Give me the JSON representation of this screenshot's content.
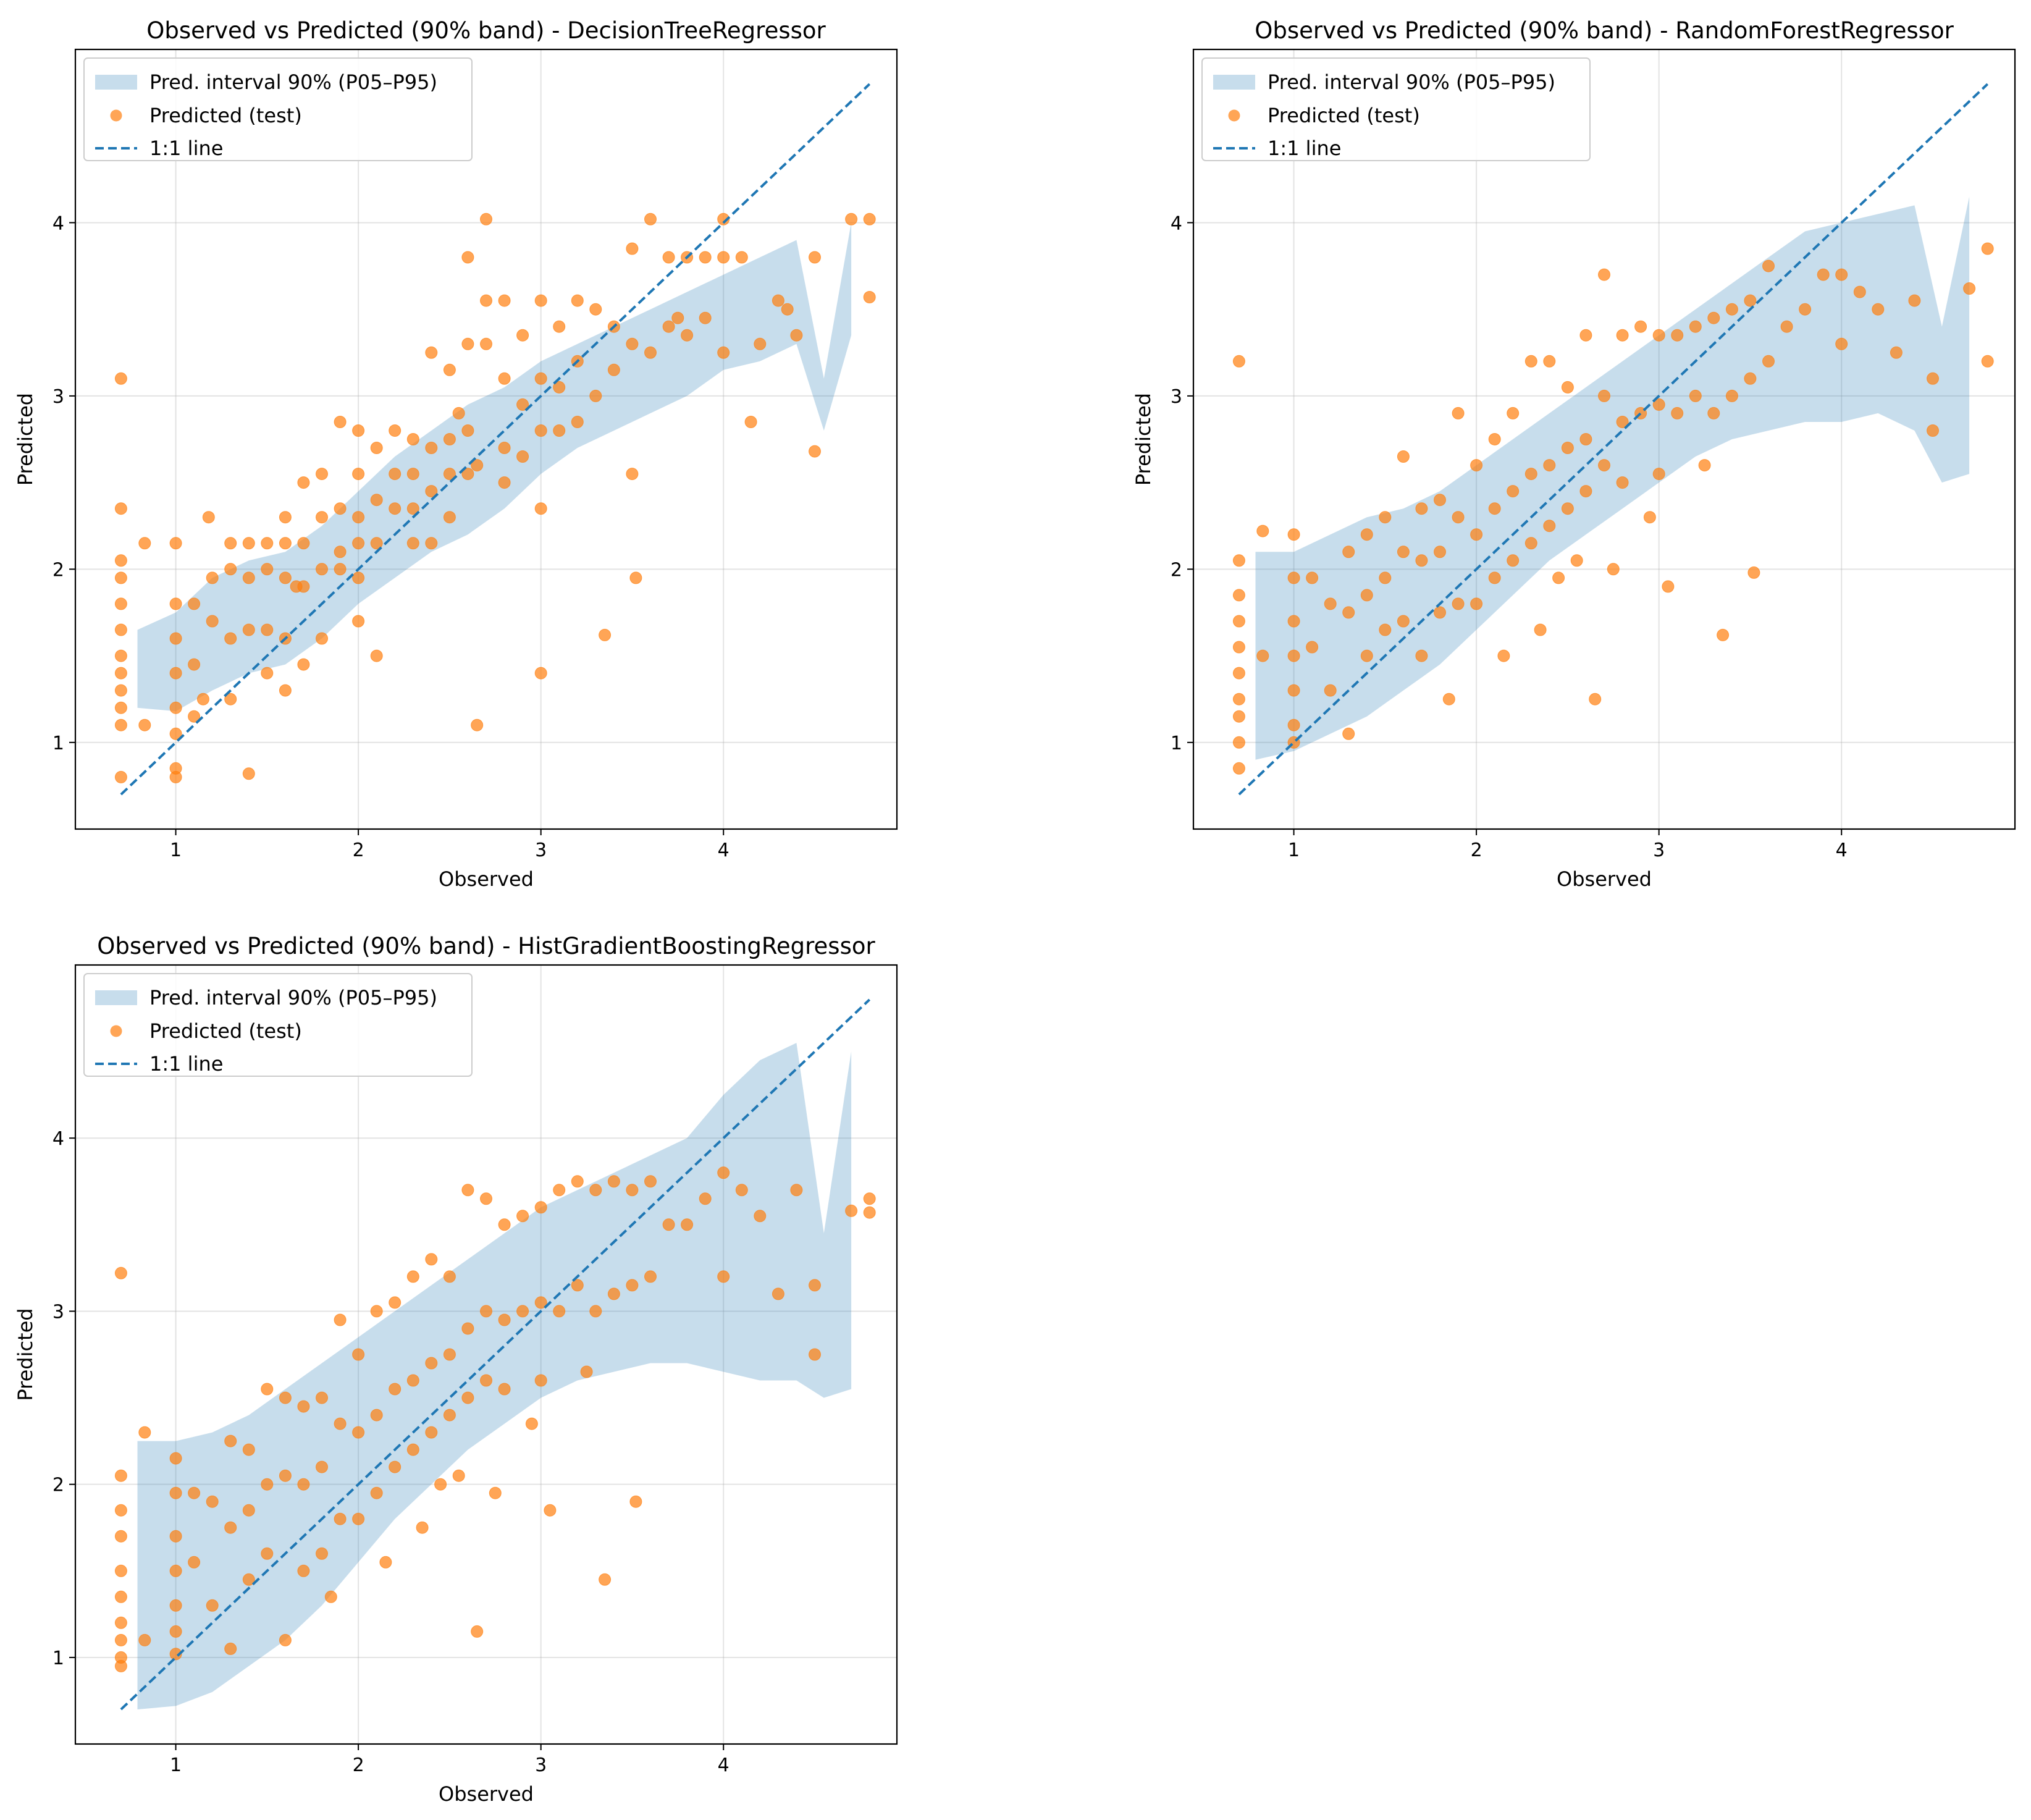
{
  "figure": {
    "background": "#ffffff"
  },
  "colors": {
    "band": "#1f77b4",
    "points": "#ff7f0e",
    "identity_line": "#1f77b4",
    "grid": "#b0b0b0"
  },
  "chart_data": [
    {
      "type": "scatter",
      "title": "Observed vs Predicted (90% band) - DecisionTreeRegressor",
      "xlabel": "Observed",
      "ylabel": "Predicted",
      "xlim": [
        0.45,
        4.95
      ],
      "ylim": [
        0.5,
        5.0
      ],
      "xticks": [
        1,
        2,
        3,
        4
      ],
      "yticks": [
        1,
        2,
        3,
        4
      ],
      "grid": true,
      "legend_position": "top-left",
      "legend": [
        "Pred. interval 90% (P05–P95)",
        "Predicted (test)",
        "1:1 line"
      ],
      "band": {
        "x": [
          0.79,
          1.0,
          1.2,
          1.4,
          1.6,
          1.8,
          2.0,
          2.2,
          2.4,
          2.6,
          2.8,
          3.0,
          3.2,
          3.4,
          3.6,
          3.8,
          4.0,
          4.2,
          4.4,
          4.55,
          4.7
        ],
        "p05": [
          1.2,
          1.18,
          1.3,
          1.4,
          1.45,
          1.6,
          1.8,
          1.95,
          2.1,
          2.2,
          2.35,
          2.55,
          2.7,
          2.8,
          2.9,
          3.0,
          3.15,
          3.2,
          3.3,
          2.8,
          3.35
        ],
        "p95": [
          1.65,
          1.75,
          1.95,
          2.05,
          2.1,
          2.25,
          2.45,
          2.65,
          2.8,
          2.95,
          3.05,
          3.2,
          3.3,
          3.4,
          3.5,
          3.6,
          3.7,
          3.8,
          3.9,
          3.1,
          4.0
        ]
      },
      "identity_line": {
        "x": [
          0.7,
          4.8
        ],
        "y": [
          0.7,
          4.8
        ]
      },
      "points": {
        "x": [
          0.7,
          0.7,
          0.7,
          0.7,
          0.7,
          0.7,
          0.7,
          0.7,
          0.7,
          0.7,
          0.7,
          0.7,
          0.83,
          0.83,
          1.0,
          1.0,
          1.0,
          1.0,
          1.0,
          1.0,
          1.0,
          1.0,
          1.1,
          1.1,
          1.1,
          1.18,
          1.2,
          1.2,
          1.3,
          1.3,
          1.3,
          1.3,
          1.4,
          1.4,
          1.4,
          1.4,
          1.5,
          1.5,
          1.5,
          1.5,
          1.6,
          1.6,
          1.6,
          1.6,
          1.6,
          1.7,
          1.7,
          1.7,
          1.7,
          1.8,
          1.8,
          1.8,
          1.8,
          1.9,
          1.9,
          1.9,
          2.0,
          2.0,
          2.0,
          2.0,
          2.0,
          2.1,
          2.1,
          2.1,
          2.2,
          2.2,
          2.2,
          2.3,
          2.3,
          2.3,
          2.3,
          2.4,
          2.4,
          2.4,
          2.4,
          2.5,
          2.5,
          2.5,
          2.5,
          2.6,
          2.6,
          2.6,
          2.6,
          2.65,
          2.7,
          2.7,
          2.7,
          2.8,
          2.8,
          2.8,
          2.8,
          2.9,
          2.9,
          2.9,
          3.0,
          3.0,
          3.0,
          3.0,
          3.1,
          3.1,
          3.1,
          3.2,
          3.2,
          3.2,
          3.3,
          3.3,
          3.35,
          3.4,
          3.4,
          3.5,
          3.5,
          3.5,
          3.6,
          3.6,
          3.7,
          3.7,
          3.8,
          3.8,
          3.9,
          3.9,
          4.0,
          4.0,
          4.0,
          4.1,
          4.15,
          4.2,
          4.3,
          4.4,
          4.5,
          4.5,
          4.7,
          4.8,
          4.8,
          1.15,
          2.65,
          1.66,
          1.9,
          2.55,
          3.0,
          3.52,
          2.0,
          3.75,
          4.35,
          2.1
        ],
        "y": [
          3.1,
          2.35,
          2.05,
          1.95,
          1.8,
          1.65,
          1.5,
          1.4,
          1.3,
          1.2,
          1.1,
          0.8,
          2.15,
          1.1,
          2.15,
          1.8,
          1.6,
          1.4,
          1.2,
          1.05,
          0.85,
          0.8,
          1.8,
          1.45,
          1.15,
          2.3,
          1.95,
          1.7,
          2.15,
          2.0,
          1.6,
          1.25,
          2.15,
          1.95,
          1.65,
          0.82,
          2.15,
          2.0,
          1.65,
          1.4,
          2.3,
          2.15,
          1.95,
          1.6,
          1.3,
          2.5,
          2.15,
          1.9,
          1.45,
          2.55,
          2.3,
          2.0,
          1.6,
          2.85,
          2.35,
          2.0,
          2.8,
          2.55,
          2.3,
          2.15,
          1.95,
          2.7,
          2.4,
          2.15,
          2.8,
          2.55,
          2.35,
          2.75,
          2.55,
          2.35,
          2.15,
          3.25,
          2.7,
          2.45,
          2.15,
          3.15,
          2.75,
          2.55,
          2.3,
          3.8,
          3.3,
          2.8,
          2.55,
          1.1,
          4.02,
          3.55,
          3.3,
          3.55,
          3.1,
          2.7,
          2.5,
          3.35,
          2.95,
          2.65,
          3.55,
          3.1,
          2.8,
          1.4,
          3.4,
          3.05,
          2.8,
          3.55,
          3.2,
          2.85,
          3.5,
          3.0,
          1.62,
          3.4,
          3.15,
          3.85,
          3.3,
          2.55,
          4.02,
          3.25,
          3.8,
          3.4,
          3.8,
          3.35,
          3.8,
          3.45,
          4.02,
          3.8,
          3.25,
          3.8,
          2.85,
          3.3,
          3.55,
          3.35,
          3.8,
          2.68,
          4.02,
          4.02,
          3.57,
          1.25,
          2.6,
          1.9,
          2.1,
          2.9,
          2.35,
          1.95,
          1.7,
          3.45,
          3.5,
          1.5
        ]
      }
    },
    {
      "type": "scatter",
      "title": "Observed vs Predicted (90% band) - RandomForestRegressor",
      "xlabel": "Observed",
      "ylabel": "Predicted",
      "xlim": [
        0.45,
        4.95
      ],
      "ylim": [
        0.5,
        5.0
      ],
      "xticks": [
        1,
        2,
        3,
        4
      ],
      "yticks": [
        1,
        2,
        3,
        4
      ],
      "grid": true,
      "legend_position": "top-left",
      "legend": [
        "Pred. interval 90% (P05–P95)",
        "Predicted (test)",
        "1:1 line"
      ],
      "band": {
        "x": [
          0.79,
          1.0,
          1.2,
          1.4,
          1.6,
          1.8,
          2.0,
          2.2,
          2.4,
          2.6,
          2.8,
          3.0,
          3.2,
          3.4,
          3.6,
          3.8,
          4.0,
          4.2,
          4.4,
          4.55,
          4.7
        ],
        "p05": [
          0.9,
          0.95,
          1.05,
          1.15,
          1.3,
          1.45,
          1.65,
          1.85,
          2.05,
          2.2,
          2.35,
          2.5,
          2.65,
          2.75,
          2.8,
          2.85,
          2.85,
          2.9,
          2.8,
          2.5,
          2.55
        ],
        "p95": [
          2.1,
          2.1,
          2.2,
          2.3,
          2.35,
          2.45,
          2.6,
          2.75,
          2.9,
          3.05,
          3.2,
          3.35,
          3.5,
          3.65,
          3.8,
          3.95,
          4.0,
          4.05,
          4.1,
          3.4,
          4.15
        ]
      },
      "identity_line": {
        "x": [
          0.7,
          4.8
        ],
        "y": [
          0.7,
          4.8
        ]
      },
      "points": {
        "x": [
          0.7,
          0.7,
          0.7,
          0.7,
          0.7,
          0.7,
          0.7,
          0.7,
          0.7,
          0.7,
          0.83,
          0.83,
          1.0,
          1.0,
          1.0,
          1.0,
          1.0,
          1.0,
          1.0,
          1.1,
          1.1,
          1.2,
          1.2,
          1.3,
          1.3,
          1.3,
          1.4,
          1.4,
          1.4,
          1.5,
          1.5,
          1.5,
          1.6,
          1.6,
          1.6,
          1.7,
          1.7,
          1.7,
          1.8,
          1.8,
          1.8,
          1.9,
          1.9,
          1.9,
          2.0,
          2.0,
          2.0,
          2.1,
          2.1,
          2.1,
          2.2,
          2.2,
          2.2,
          2.3,
          2.3,
          2.3,
          2.4,
          2.4,
          2.4,
          2.5,
          2.5,
          2.5,
          2.6,
          2.6,
          2.6,
          2.65,
          2.7,
          2.7,
          2.7,
          2.8,
          2.8,
          2.8,
          2.9,
          2.9,
          3.0,
          3.0,
          3.0,
          3.1,
          3.1,
          3.2,
          3.2,
          3.3,
          3.3,
          3.35,
          3.4,
          3.4,
          3.5,
          3.5,
          3.52,
          3.6,
          3.6,
          3.7,
          3.8,
          3.9,
          4.0,
          4.0,
          4.1,
          4.2,
          4.3,
          4.4,
          4.5,
          4.5,
          4.7,
          4.8,
          4.8,
          2.15,
          2.45,
          2.75,
          3.05,
          1.85,
          2.35,
          2.55,
          2.95,
          3.25
        ],
        "y": [
          3.2,
          2.05,
          1.85,
          1.7,
          1.55,
          1.4,
          1.25,
          1.15,
          1.0,
          0.85,
          2.22,
          1.5,
          2.2,
          1.95,
          1.7,
          1.5,
          1.3,
          1.1,
          1.0,
          1.95,
          1.55,
          1.8,
          1.3,
          2.1,
          1.75,
          1.05,
          2.2,
          1.85,
          1.5,
          2.3,
          1.95,
          1.65,
          2.65,
          2.1,
          1.7,
          2.35,
          2.05,
          1.5,
          2.4,
          2.1,
          1.75,
          2.9,
          2.3,
          1.8,
          2.6,
          2.2,
          1.8,
          2.75,
          2.35,
          1.95,
          2.9,
          2.45,
          2.05,
          3.2,
          2.55,
          2.15,
          3.2,
          2.6,
          2.25,
          3.05,
          2.7,
          2.35,
          3.35,
          2.75,
          2.45,
          1.25,
          3.7,
          3.0,
          2.6,
          3.35,
          2.85,
          2.5,
          3.4,
          2.9,
          3.35,
          2.95,
          2.55,
          3.35,
          2.9,
          3.4,
          3.0,
          3.45,
          2.9,
          1.62,
          3.5,
          3.0,
          3.55,
          3.1,
          1.98,
          3.75,
          3.2,
          3.4,
          3.5,
          3.7,
          3.7,
          3.3,
          3.6,
          3.5,
          3.25,
          3.55,
          3.1,
          2.8,
          3.62,
          3.85,
          3.2,
          1.5,
          1.95,
          2.0,
          1.9,
          1.25,
          1.65,
          2.05,
          2.3,
          2.6
        ]
      }
    },
    {
      "type": "scatter",
      "title": "Observed vs Predicted (90% band) - HistGradientBoostingRegressor",
      "xlabel": "Observed",
      "ylabel": "Predicted",
      "xlim": [
        0.45,
        4.95
      ],
      "ylim": [
        0.5,
        5.0
      ],
      "xticks": [
        1,
        2,
        3,
        4
      ],
      "yticks": [
        1,
        2,
        3,
        4
      ],
      "grid": true,
      "legend_position": "top-left",
      "legend": [
        "Pred. interval 90% (P05–P95)",
        "Predicted (test)",
        "1:1 line"
      ],
      "band": {
        "x": [
          0.79,
          1.0,
          1.2,
          1.4,
          1.6,
          1.8,
          2.0,
          2.2,
          2.4,
          2.6,
          2.8,
          3.0,
          3.2,
          3.4,
          3.6,
          3.8,
          4.0,
          4.2,
          4.4,
          4.55,
          4.7
        ],
        "p05": [
          0.7,
          0.72,
          0.8,
          0.95,
          1.1,
          1.3,
          1.55,
          1.8,
          2.0,
          2.2,
          2.35,
          2.5,
          2.6,
          2.65,
          2.7,
          2.7,
          2.65,
          2.6,
          2.6,
          2.5,
          2.55
        ],
        "p95": [
          2.25,
          2.25,
          2.3,
          2.4,
          2.55,
          2.7,
          2.85,
          3.0,
          3.15,
          3.3,
          3.45,
          3.6,
          3.7,
          3.8,
          3.9,
          4.0,
          4.25,
          4.45,
          4.55,
          3.45,
          4.5
        ]
      },
      "identity_line": {
        "x": [
          0.7,
          4.8
        ],
        "y": [
          0.7,
          4.8
        ]
      },
      "points": {
        "x": [
          0.7,
          0.7,
          0.7,
          0.7,
          0.7,
          0.7,
          0.7,
          0.7,
          0.7,
          0.7,
          0.83,
          0.83,
          1.0,
          1.0,
          1.0,
          1.0,
          1.0,
          1.0,
          1.0,
          1.1,
          1.1,
          1.2,
          1.2,
          1.3,
          1.3,
          1.3,
          1.4,
          1.4,
          1.4,
          1.5,
          1.5,
          1.5,
          1.6,
          1.6,
          1.6,
          1.7,
          1.7,
          1.7,
          1.8,
          1.8,
          1.8,
          1.9,
          1.9,
          1.9,
          2.0,
          2.0,
          2.0,
          2.1,
          2.1,
          2.1,
          2.2,
          2.2,
          2.2,
          2.3,
          2.3,
          2.3,
          2.4,
          2.4,
          2.4,
          2.5,
          2.5,
          2.5,
          2.6,
          2.6,
          2.6,
          2.65,
          2.7,
          2.7,
          2.7,
          2.8,
          2.8,
          2.8,
          2.9,
          2.9,
          3.0,
          3.0,
          3.0,
          3.1,
          3.1,
          3.2,
          3.2,
          3.3,
          3.3,
          3.35,
          3.4,
          3.4,
          3.5,
          3.5,
          3.52,
          3.6,
          3.6,
          3.7,
          3.8,
          3.9,
          4.0,
          4.0,
          4.1,
          4.2,
          4.3,
          4.4,
          4.5,
          4.5,
          4.7,
          4.8,
          4.8,
          2.15,
          2.45,
          2.75,
          3.05,
          1.85,
          2.35,
          2.55,
          2.95,
          3.25
        ],
        "y": [
          3.22,
          2.05,
          1.85,
          1.7,
          1.5,
          1.35,
          1.2,
          1.1,
          1.0,
          0.95,
          2.3,
          1.1,
          2.15,
          1.95,
          1.7,
          1.5,
          1.3,
          1.15,
          1.02,
          1.95,
          1.55,
          1.9,
          1.3,
          2.25,
          1.75,
          1.05,
          2.2,
          1.85,
          1.45,
          2.55,
          2.0,
          1.6,
          2.5,
          2.05,
          1.1,
          2.45,
          2.0,
          1.5,
          2.5,
          2.1,
          1.6,
          2.95,
          2.35,
          1.8,
          2.75,
          2.3,
          1.8,
          3.0,
          2.4,
          1.95,
          3.05,
          2.55,
          2.1,
          3.2,
          2.6,
          2.2,
          3.3,
          2.7,
          2.3,
          3.2,
          2.75,
          2.4,
          3.7,
          2.9,
          2.5,
          1.15,
          3.65,
          3.0,
          2.6,
          3.5,
          2.95,
          2.55,
          3.55,
          3.0,
          3.6,
          3.05,
          2.6,
          3.7,
          3.0,
          3.75,
          3.15,
          3.7,
          3.0,
          1.45,
          3.75,
          3.1,
          3.7,
          3.15,
          1.9,
          3.75,
          3.2,
          3.5,
          3.5,
          3.65,
          3.8,
          3.2,
          3.7,
          3.55,
          3.1,
          3.7,
          3.15,
          2.75,
          3.58,
          3.65,
          3.57,
          1.55,
          2.0,
          1.95,
          1.85,
          1.35,
          1.75,
          2.05,
          2.35,
          2.65
        ]
      }
    }
  ]
}
